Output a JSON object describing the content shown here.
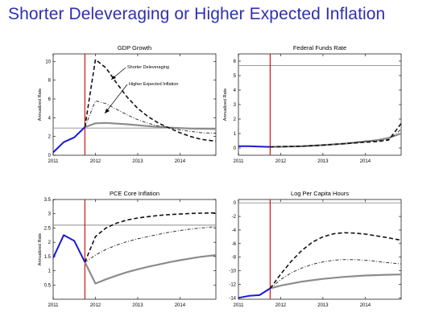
{
  "slide": {
    "title": "Shorter Deleveraging or Higher Expected Inflation"
  },
  "colors": {
    "title": "#2f2fb3",
    "history": "#1a1ad6",
    "vertical_marker": "#cc0000",
    "steady_state": "#8c8c8c",
    "baseline": "#8c8c8c",
    "shorter_deleveraging": "#111111",
    "higher_expected_inflation": "#333333"
  },
  "chart_data": [
    {
      "type": "line",
      "title": "GDP Growth",
      "ylabel": "Annualized Rate",
      "xlim": [
        2011,
        2014.85
      ],
      "ylim": [
        0,
        10.8
      ],
      "xticks": [
        2011,
        2012,
        2013,
        2014
      ],
      "yticks": [
        0,
        2,
        4,
        6,
        8,
        10
      ],
      "vline": 2011.75,
      "steady_state": 2.9,
      "annotations": [
        "Shorter Deleveraging",
        "Higher Expected Inflation"
      ],
      "series": [
        {
          "role": "history",
          "points": [
            [
              2011,
              0.3
            ],
            [
              2011.25,
              1.4
            ],
            [
              2011.5,
              1.9
            ],
            [
              2011.75,
              3.0
            ]
          ]
        },
        {
          "role": "baseline",
          "points": [
            [
              2011.75,
              3.0
            ],
            [
              2012,
              3.4
            ],
            [
              2012.25,
              3.45
            ],
            [
              2012.75,
              3.3
            ],
            [
              2013.25,
              3.1
            ],
            [
              2013.75,
              2.95
            ],
            [
              2014.25,
              2.85
            ],
            [
              2014.85,
              2.8
            ]
          ]
        },
        {
          "name": "Shorter Deleveraging",
          "role": "shorter_deleveraging",
          "points": [
            [
              2011.75,
              3.0
            ],
            [
              2012,
              10.2
            ],
            [
              2012.25,
              9.3
            ],
            [
              2012.5,
              7.7
            ],
            [
              2012.75,
              6.2
            ],
            [
              2013,
              5.0
            ],
            [
              2013.25,
              4.1
            ],
            [
              2013.5,
              3.4
            ],
            [
              2013.75,
              2.9
            ],
            [
              2014,
              2.4
            ],
            [
              2014.25,
              2.0
            ],
            [
              2014.5,
              1.7
            ],
            [
              2014.85,
              1.5
            ]
          ]
        },
        {
          "name": "Higher Expected Inflation",
          "role": "higher_expected_inflation",
          "points": [
            [
              2011.75,
              3.0
            ],
            [
              2012,
              5.8
            ],
            [
              2012.25,
              5.5
            ],
            [
              2012.5,
              4.9
            ],
            [
              2012.75,
              4.3
            ],
            [
              2013,
              3.8
            ],
            [
              2013.25,
              3.4
            ],
            [
              2013.5,
              3.1
            ],
            [
              2013.75,
              2.95
            ],
            [
              2014,
              2.7
            ],
            [
              2014.25,
              2.55
            ],
            [
              2014.5,
              2.4
            ],
            [
              2014.85,
              2.35
            ]
          ]
        }
      ]
    },
    {
      "type": "line",
      "title": "Federal Funds Rate",
      "ylabel": "Annualized Rate",
      "xlim": [
        2011,
        2014.85
      ],
      "ylim": [
        -0.5,
        6.5
      ],
      "xticks": [
        2011,
        2012,
        2013,
        2014
      ],
      "yticks": [
        0,
        1,
        2,
        3,
        4,
        5,
        6
      ],
      "vline": 2011.75,
      "steady_state": 5.7,
      "series": [
        {
          "role": "history",
          "points": [
            [
              2011,
              0.12
            ],
            [
              2011.25,
              0.12
            ],
            [
              2011.5,
              0.1
            ],
            [
              2011.75,
              0.08
            ]
          ]
        },
        {
          "role": "baseline",
          "points": [
            [
              2011.75,
              0.08
            ],
            [
              2012.5,
              0.12
            ],
            [
              2013,
              0.2
            ],
            [
              2013.5,
              0.3
            ],
            [
              2014,
              0.45
            ],
            [
              2014.3,
              0.55
            ],
            [
              2014.55,
              0.7
            ],
            [
              2014.85,
              1.0
            ]
          ]
        },
        {
          "name": "Shorter Deleveraging",
          "role": "shorter_deleveraging",
          "points": [
            [
              2011.75,
              0.08
            ],
            [
              2012.5,
              0.12
            ],
            [
              2013,
              0.2
            ],
            [
              2013.5,
              0.3
            ],
            [
              2014,
              0.4
            ],
            [
              2014.3,
              0.45
            ],
            [
              2014.55,
              0.55
            ],
            [
              2014.7,
              1.1
            ],
            [
              2014.85,
              1.7
            ]
          ]
        },
        {
          "name": "Higher Expected Inflation",
          "role": "higher_expected_inflation",
          "points": [
            [
              2011.75,
              0.08
            ],
            [
              2012.5,
              0.12
            ],
            [
              2013,
              0.2
            ],
            [
              2013.5,
              0.3
            ],
            [
              2014,
              0.45
            ],
            [
              2014.3,
              0.5
            ],
            [
              2014.55,
              0.6
            ],
            [
              2014.7,
              0.9
            ],
            [
              2014.85,
              1.3
            ]
          ]
        }
      ]
    },
    {
      "type": "line",
      "title": "PCE Core Inflation",
      "ylabel": "Annualized Rate",
      "xlim": [
        2011,
        2014.85
      ],
      "ylim": [
        0,
        3.5
      ],
      "xticks": [
        2011,
        2012,
        2013,
        2014
      ],
      "yticks": [
        0.5,
        1,
        1.5,
        2,
        2.5,
        3,
        3.5
      ],
      "ytick_labels": [
        "0.5",
        "1",
        "1.5",
        "2",
        "2.5",
        "3",
        "3.5"
      ],
      "vline": 2011.75,
      "steady_state": 2.6,
      "series": [
        {
          "role": "history",
          "points": [
            [
              2011,
              1.45
            ],
            [
              2011.25,
              2.25
            ],
            [
              2011.5,
              2.05
            ],
            [
              2011.75,
              1.3
            ]
          ]
        },
        {
          "role": "baseline",
          "points": [
            [
              2011.75,
              1.3
            ],
            [
              2012,
              0.55
            ],
            [
              2012.25,
              0.7
            ],
            [
              2012.5,
              0.83
            ],
            [
              2012.75,
              0.95
            ],
            [
              2013,
              1.05
            ],
            [
              2013.25,
              1.14
            ],
            [
              2013.5,
              1.22
            ],
            [
              2013.75,
              1.3
            ],
            [
              2014,
              1.37
            ],
            [
              2014.25,
              1.43
            ],
            [
              2014.5,
              1.49
            ],
            [
              2014.85,
              1.55
            ]
          ]
        },
        {
          "name": "Shorter Deleveraging",
          "role": "shorter_deleveraging",
          "points": [
            [
              2011.75,
              1.3
            ],
            [
              2012,
              2.2
            ],
            [
              2012.25,
              2.5
            ],
            [
              2012.5,
              2.67
            ],
            [
              2012.75,
              2.78
            ],
            [
              2013,
              2.85
            ],
            [
              2013.25,
              2.9
            ],
            [
              2013.5,
              2.94
            ],
            [
              2013.75,
              2.97
            ],
            [
              2014,
              2.99
            ],
            [
              2014.25,
              3.01
            ],
            [
              2014.5,
              3.02
            ],
            [
              2014.85,
              3.03
            ]
          ]
        },
        {
          "name": "Higher Expected Inflation",
          "role": "higher_expected_inflation",
          "points": [
            [
              2011.75,
              1.3
            ],
            [
              2012,
              1.55
            ],
            [
              2012.25,
              1.75
            ],
            [
              2012.5,
              1.9
            ],
            [
              2012.75,
              2.02
            ],
            [
              2013,
              2.12
            ],
            [
              2013.25,
              2.2
            ],
            [
              2013.5,
              2.28
            ],
            [
              2013.75,
              2.35
            ],
            [
              2014,
              2.41
            ],
            [
              2014.25,
              2.46
            ],
            [
              2014.5,
              2.5
            ],
            [
              2014.85,
              2.55
            ]
          ]
        }
      ]
    },
    {
      "type": "line",
      "title": "Log Per Capita Hours",
      "ylabel": "",
      "xlim": [
        2011,
        2014.85
      ],
      "ylim": [
        -14.2,
        0.5
      ],
      "xticks": [
        2011,
        2012,
        2013,
        2014
      ],
      "yticks": [
        0,
        -2,
        -4,
        -6,
        -8,
        -10,
        -12,
        -14
      ],
      "vline": 2011.75,
      "steady_state": 0,
      "series": [
        {
          "role": "history",
          "points": [
            [
              2011,
              -14.0
            ],
            [
              2011.25,
              -13.7
            ],
            [
              2011.5,
              -13.6
            ],
            [
              2011.75,
              -12.6
            ]
          ]
        },
        {
          "role": "baseline",
          "points": [
            [
              2011.75,
              -12.6
            ],
            [
              2012,
              -12.2
            ],
            [
              2012.5,
              -11.6
            ],
            [
              2013,
              -11.2
            ],
            [
              2013.5,
              -10.9
            ],
            [
              2014,
              -10.7
            ],
            [
              2014.5,
              -10.6
            ],
            [
              2014.85,
              -10.55
            ]
          ]
        },
        {
          "name": "Shorter Deleveraging",
          "role": "shorter_deleveraging",
          "points": [
            [
              2011.75,
              -12.6
            ],
            [
              2012,
              -10.5
            ],
            [
              2012.25,
              -8.6
            ],
            [
              2012.5,
              -7.0
            ],
            [
              2012.75,
              -5.8
            ],
            [
              2013,
              -5.0
            ],
            [
              2013.25,
              -4.55
            ],
            [
              2013.5,
              -4.4
            ],
            [
              2013.75,
              -4.45
            ],
            [
              2014,
              -4.6
            ],
            [
              2014.25,
              -4.85
            ],
            [
              2014.5,
              -5.1
            ],
            [
              2014.85,
              -5.5
            ]
          ]
        },
        {
          "name": "Higher Expected Inflation",
          "role": "higher_expected_inflation",
          "points": [
            [
              2011.75,
              -12.6
            ],
            [
              2012,
              -11.3
            ],
            [
              2012.25,
              -10.3
            ],
            [
              2012.5,
              -9.6
            ],
            [
              2012.75,
              -9.05
            ],
            [
              2013,
              -8.7
            ],
            [
              2013.25,
              -8.45
            ],
            [
              2013.5,
              -8.35
            ],
            [
              2013.75,
              -8.35
            ],
            [
              2014,
              -8.45
            ],
            [
              2014.25,
              -8.6
            ],
            [
              2014.5,
              -8.8
            ],
            [
              2014.85,
              -9.0
            ]
          ]
        }
      ]
    }
  ]
}
